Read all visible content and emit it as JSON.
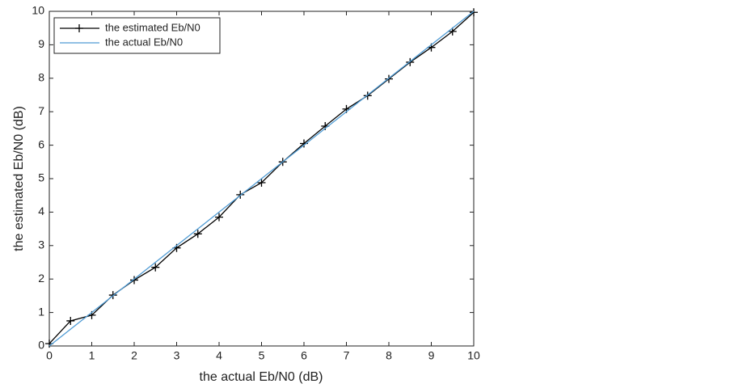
{
  "chart_data": {
    "type": "line",
    "x_label": "the actual Eb/N0 (dB)",
    "y_label": "the estimated Eb/N0 (dB)",
    "x": [
      0,
      0.5,
      1,
      1.5,
      2,
      2.5,
      3,
      3.5,
      4,
      4.5,
      5,
      5.5,
      6,
      6.5,
      7,
      7.5,
      8,
      8.5,
      9,
      9.5,
      10
    ],
    "series": [
      {
        "name": "the estimated Eb/N0",
        "color": "#000000",
        "marker": "plus",
        "values": [
          0.07,
          0.75,
          0.92,
          1.52,
          1.97,
          2.35,
          2.93,
          3.35,
          3.85,
          4.52,
          4.88,
          5.5,
          6.05,
          6.57,
          7.08,
          7.48,
          7.98,
          8.48,
          8.92,
          9.4,
          9.97
        ]
      },
      {
        "name": "the actual Eb/N0",
        "color": "#4f9bd4",
        "values": [
          0,
          0.5,
          1,
          1.5,
          2,
          2.5,
          3,
          3.5,
          4,
          4.5,
          5,
          5.5,
          6,
          6.5,
          7,
          7.5,
          8,
          8.5,
          9,
          9.5,
          10
        ]
      }
    ],
    "xlim": [
      0,
      10
    ],
    "ylim": [
      0,
      10
    ],
    "xticks": [
      0,
      1,
      2,
      3,
      4,
      5,
      6,
      7,
      8,
      9,
      10
    ],
    "yticks": [
      0,
      1,
      2,
      3,
      4,
      5,
      6,
      7,
      8,
      9,
      10
    ],
    "grid": false,
    "legend": "upper-left"
  }
}
